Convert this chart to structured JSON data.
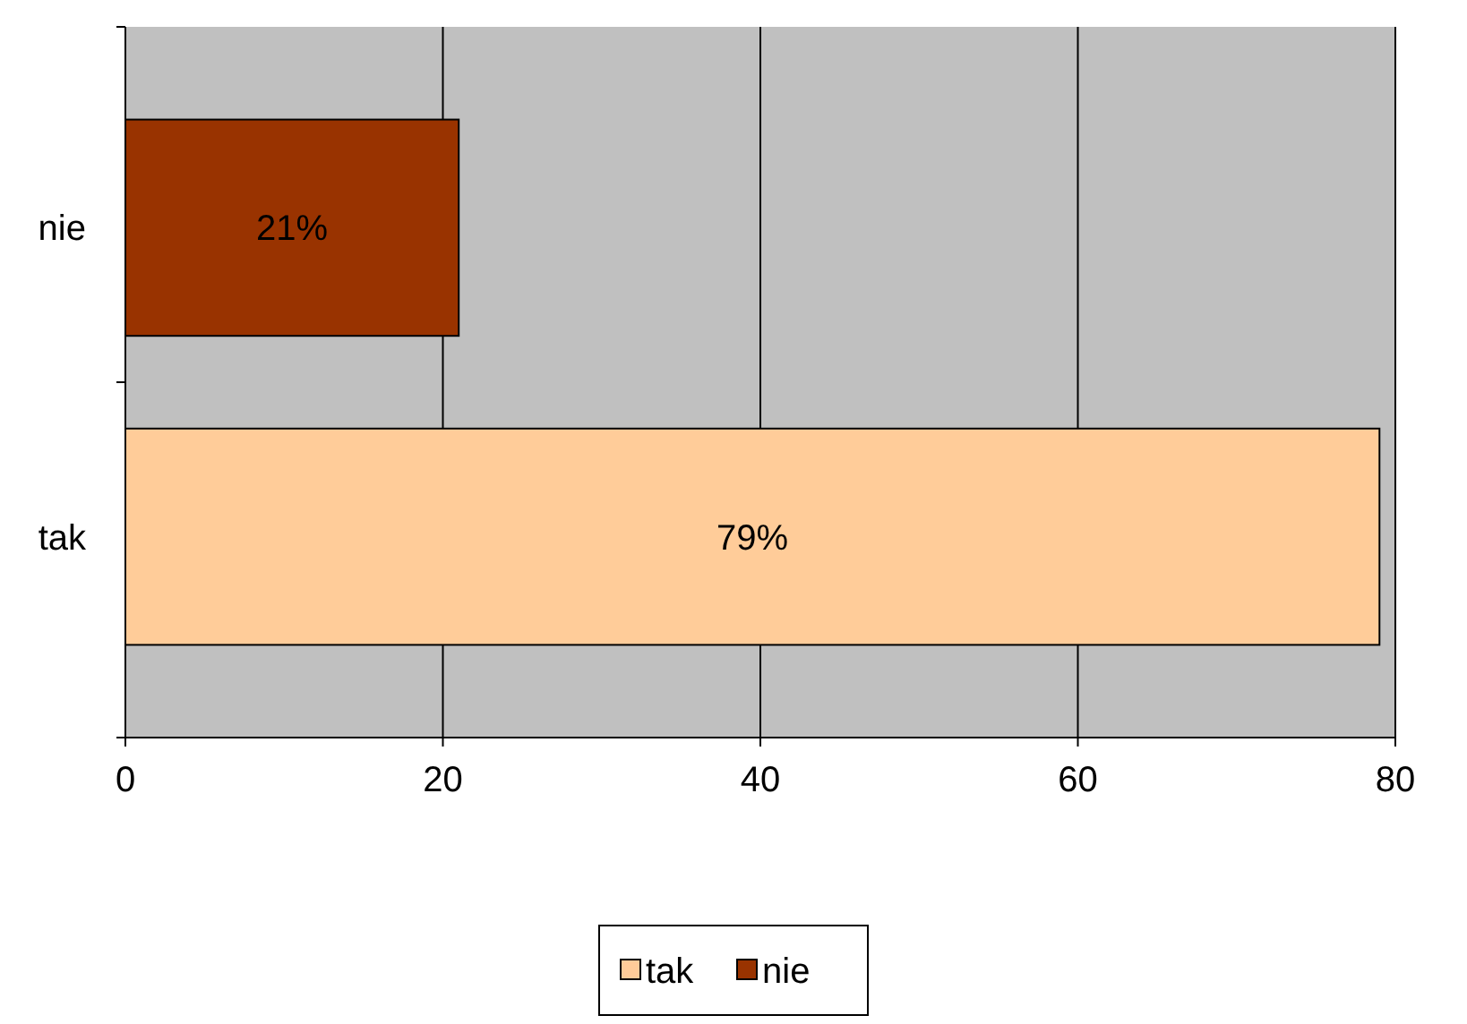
{
  "chart_data": {
    "type": "bar",
    "orientation": "horizontal",
    "categories": [
      "nie",
      "tak"
    ],
    "series": [
      {
        "name": "tak",
        "color": "#ffcc99",
        "values": [
          null,
          79
        ],
        "value_labels": [
          null,
          "79%"
        ]
      },
      {
        "name": "nie",
        "color": "#993300",
        "values": [
          21,
          null
        ],
        "value_labels": [
          "21%",
          null
        ]
      }
    ],
    "xlim": [
      0,
      80
    ],
    "xticks": [
      0,
      20,
      40,
      60,
      80
    ],
    "grid": "x",
    "legend": "bottom"
  }
}
